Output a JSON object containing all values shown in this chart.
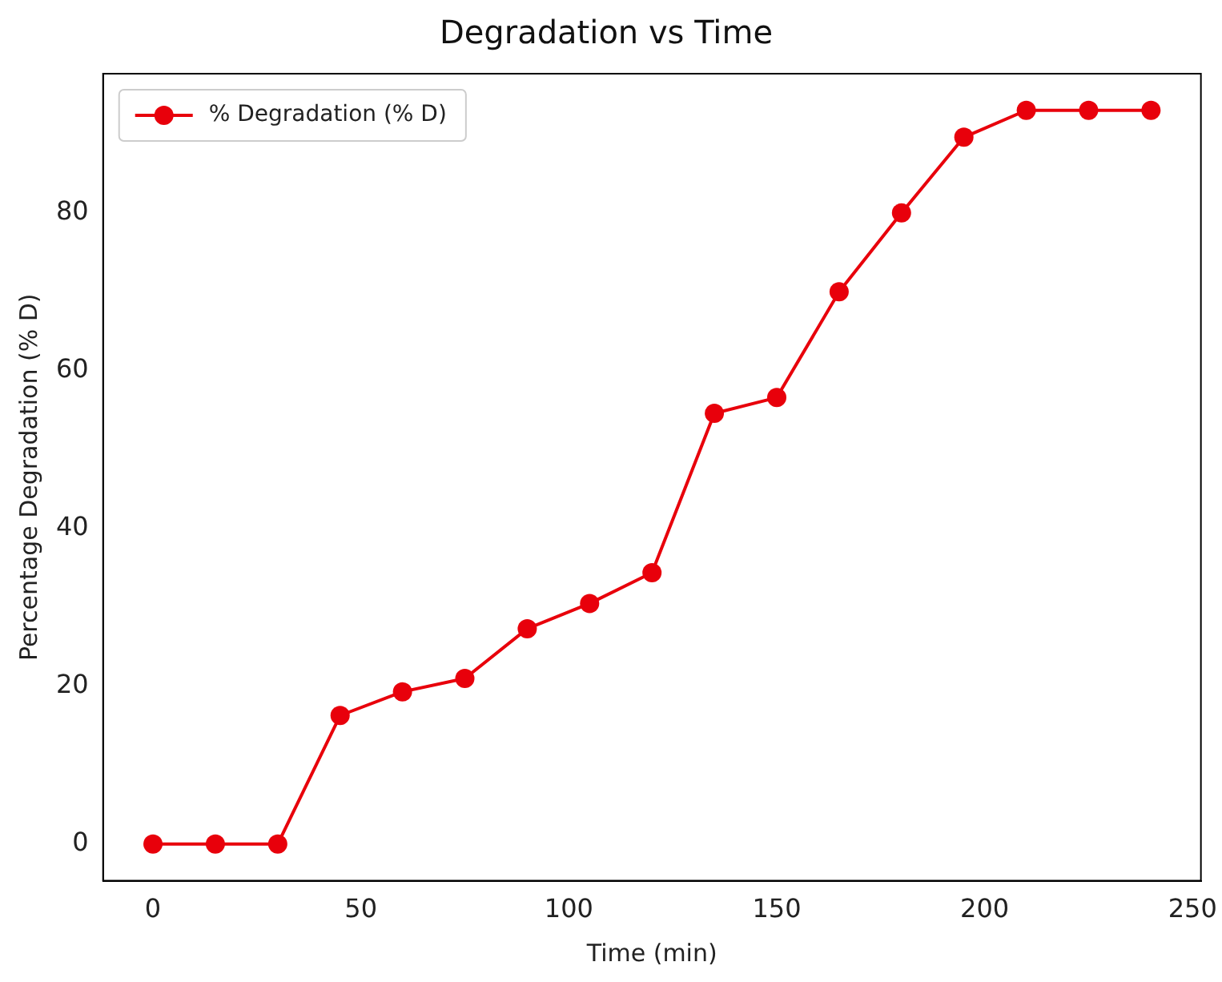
{
  "chart_data": {
    "type": "line",
    "title": "Degradation vs Time",
    "xlabel": "Time (min)",
    "ylabel": "Percentage Degradation (% D)",
    "x": [
      0,
      15,
      30,
      45,
      60,
      75,
      90,
      105,
      120,
      135,
      150,
      165,
      180,
      195,
      210,
      225,
      240
    ],
    "series": [
      {
        "name": "% Degradation (% D)",
        "color": "#e8000b",
        "values": [
          0,
          0,
          0,
          16.3,
          19.3,
          21.0,
          27.3,
          30.5,
          34.4,
          54.6,
          56.6,
          70.0,
          80.0,
          89.6,
          93.0,
          93.0,
          93.0
        ]
      }
    ],
    "xlim": [
      -12,
      252
    ],
    "xticks": [
      0,
      50,
      100,
      150,
      200,
      250
    ],
    "ylim": [
      -4.65,
      97.65
    ],
    "yticks": [
      0,
      20,
      40,
      60,
      80
    ],
    "grid": false,
    "legend": "top left",
    "marker": "circle",
    "line_style": "solid"
  }
}
